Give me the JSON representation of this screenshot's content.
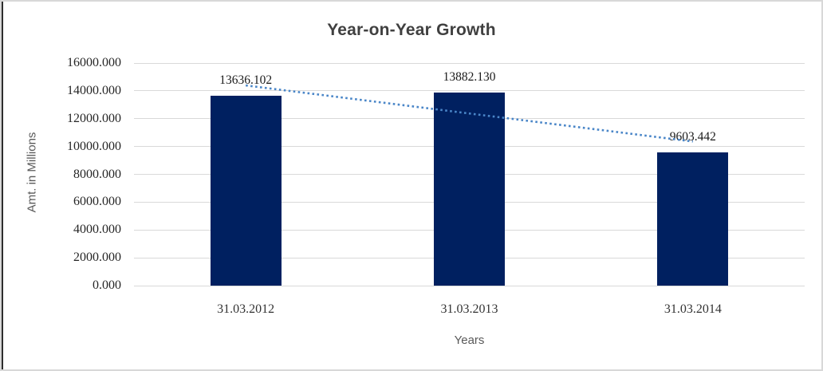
{
  "chart_data": {
    "type": "bar",
    "title": "Year-on-Year Growth",
    "xlabel": "Years",
    "ylabel": "Amt. in Millions",
    "categories": [
      "31.03.2012",
      "31.03.2013",
      "31.03.2014"
    ],
    "values": [
      13636.102,
      13882.13,
      9603.442
    ],
    "data_labels": [
      "13636.102",
      "13882.130",
      "9603.442"
    ],
    "ylim": [
      0,
      16000
    ],
    "ytick_step": 2000,
    "ytick_labels": [
      "0.000",
      "2000.000",
      "4000.000",
      "6000.000",
      "8000.000",
      "10000.000",
      "12000.000",
      "14000.000",
      "16000.000"
    ],
    "grid": true,
    "legend": "none",
    "trendline": {
      "kind": "linear",
      "style": "dotted",
      "color": "#4a86c8"
    },
    "colors": {
      "bar": "#002060",
      "gridline": "#d9d9d9",
      "title": "#404040",
      "axis_title": "#595959",
      "tick_label": "#262626",
      "data_label": "#1a1a1a",
      "frame": "#d8d8d8"
    }
  }
}
